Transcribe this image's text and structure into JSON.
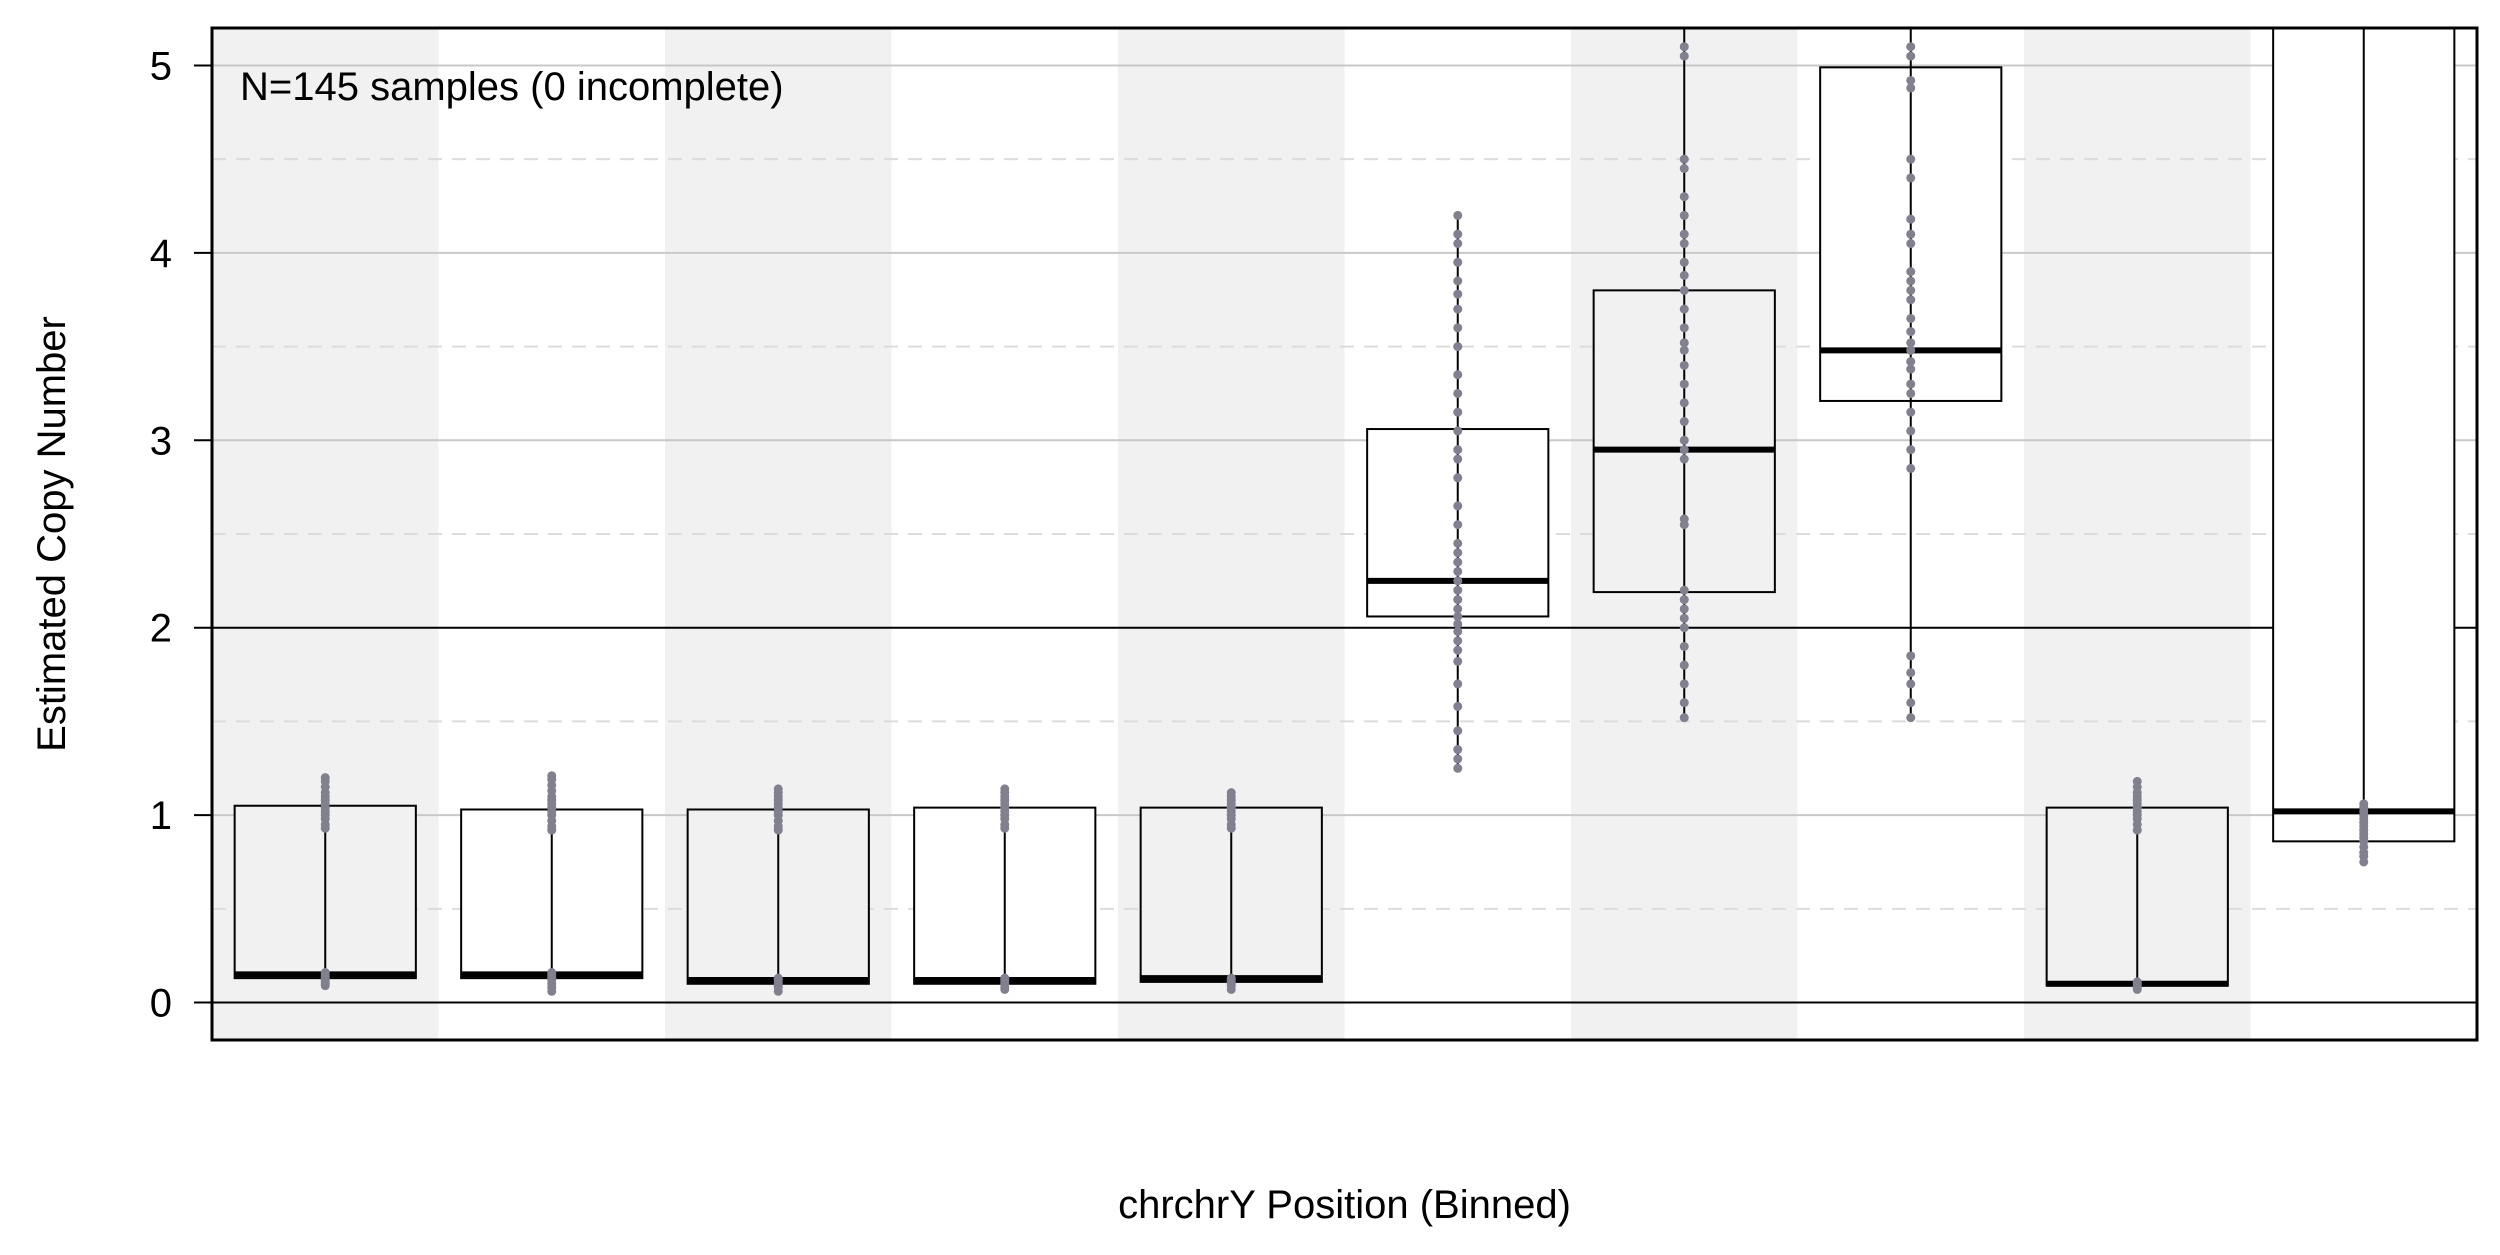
{
  "chart_data": {
    "type": "box",
    "ylabel": "Estimated Copy Number",
    "xlabel": "chrchrY Position (Binned)",
    "annotation": "N=145 samples (0 incomplete)",
    "ylim": [
      -0.2,
      5.2
    ],
    "yticks": [
      0,
      1,
      2,
      3,
      4,
      5
    ],
    "reference_lines": [
      0,
      2
    ],
    "grid": true,
    "point_color": "#80808f",
    "band_color": "#f1f1f1",
    "bins": [
      {
        "q1": 0.13,
        "median": 0.15,
        "q3": 1.05,
        "whisker_low": 0.09,
        "whisker_high": 1.21,
        "points": [
          0.09,
          0.1,
          0.11,
          0.12,
          0.13,
          0.14,
          0.15,
          0.16,
          0.93,
          0.95,
          0.98,
          1.0,
          1.02,
          1.04,
          1.06,
          1.08,
          1.1,
          1.12,
          1.15,
          1.18,
          1.2
        ]
      },
      {
        "q1": 0.13,
        "median": 0.15,
        "q3": 1.03,
        "whisker_low": 0.06,
        "whisker_high": 1.21,
        "points": [
          0.06,
          0.08,
          0.1,
          0.12,
          0.13,
          0.14,
          0.15,
          0.16,
          0.92,
          0.94,
          0.97,
          1.0,
          1.02,
          1.04,
          1.06,
          1.08,
          1.1,
          1.13,
          1.16,
          1.19,
          1.21
        ]
      },
      {
        "q1": 0.1,
        "median": 0.12,
        "q3": 1.03,
        "whisker_low": 0.06,
        "whisker_high": 1.15,
        "points": [
          0.06,
          0.08,
          0.09,
          0.1,
          0.11,
          0.12,
          0.13,
          0.92,
          0.94,
          0.97,
          1.0,
          1.02,
          1.04,
          1.06,
          1.08,
          1.1,
          1.12,
          1.14
        ]
      },
      {
        "q1": 0.1,
        "median": 0.12,
        "q3": 1.04,
        "whisker_low": 0.07,
        "whisker_high": 1.15,
        "points": [
          0.07,
          0.08,
          0.1,
          0.11,
          0.12,
          0.13,
          0.93,
          0.95,
          0.98,
          1.0,
          1.02,
          1.04,
          1.06,
          1.08,
          1.1,
          1.12,
          1.14
        ]
      },
      {
        "q1": 0.11,
        "median": 0.13,
        "q3": 1.04,
        "whisker_low": 0.07,
        "whisker_high": 1.13,
        "points": [
          0.07,
          0.09,
          0.1,
          0.11,
          0.12,
          0.13,
          0.93,
          0.95,
          0.98,
          1.0,
          1.02,
          1.04,
          1.06,
          1.08,
          1.1,
          1.12
        ]
      },
      {
        "q1": 2.06,
        "median": 2.25,
        "q3": 3.06,
        "whisker_low": 1.25,
        "whisker_high": 4.21,
        "points": [
          1.25,
          1.3,
          1.35,
          1.45,
          1.58,
          1.7,
          1.82,
          1.88,
          1.93,
          1.98,
          2.02,
          2.06,
          2.1,
          2.15,
          2.2,
          2.25,
          2.3,
          2.35,
          2.4,
          2.45,
          2.55,
          2.65,
          2.8,
          2.9,
          2.95,
          3.05,
          3.15,
          3.25,
          3.35,
          3.5,
          3.6,
          3.7,
          3.78,
          3.85,
          3.95,
          4.05,
          4.1,
          4.2
        ]
      },
      {
        "q1": 2.19,
        "median": 2.95,
        "q3": 3.8,
        "whisker_low": 1.52,
        "whisker_high": 5.2,
        "points": [
          1.52,
          1.6,
          1.7,
          1.8,
          1.9,
          2.0,
          2.05,
          2.1,
          2.15,
          2.2,
          2.55,
          2.58,
          2.9,
          2.95,
          3.0,
          3.1,
          3.2,
          3.3,
          3.4,
          3.48,
          3.52,
          3.6,
          3.7,
          3.8,
          3.88,
          3.95,
          4.05,
          4.1,
          4.2,
          4.3,
          4.45,
          4.5,
          5.05,
          5.1
        ]
      },
      {
        "q1": 3.21,
        "median": 3.48,
        "q3": 4.99,
        "whisker_low": 1.52,
        "whisker_high": 5.2,
        "points": [
          1.52,
          1.6,
          1.7,
          1.76,
          1.85,
          2.85,
          2.95,
          3.05,
          3.15,
          3.25,
          3.3,
          3.38,
          3.42,
          3.48,
          3.52,
          3.58,
          3.65,
          3.75,
          3.8,
          3.85,
          3.9,
          4.05,
          4.1,
          4.18,
          4.4,
          4.5,
          4.88,
          4.92,
          5.05,
          5.1
        ]
      },
      {
        "q1": 0.09,
        "median": 0.1,
        "q3": 1.04,
        "whisker_low": 0.07,
        "whisker_high": 1.18,
        "points": [
          0.07,
          0.08,
          0.09,
          0.1,
          0.11,
          0.92,
          0.95,
          0.98,
          1.0,
          1.02,
          1.04,
          1.06,
          1.08,
          1.1,
          1.12,
          1.15,
          1.18
        ]
      },
      {
        "q1": 0.86,
        "median": 1.02,
        "q3": 5.2,
        "whisker_low": 0.75,
        "whisker_high": 5.2,
        "points": [
          0.75,
          0.78,
          0.8,
          0.83,
          0.86,
          0.88,
          0.9,
          0.92,
          0.94,
          0.96,
          0.98,
          1.0,
          1.02,
          1.04,
          1.06
        ]
      }
    ]
  }
}
